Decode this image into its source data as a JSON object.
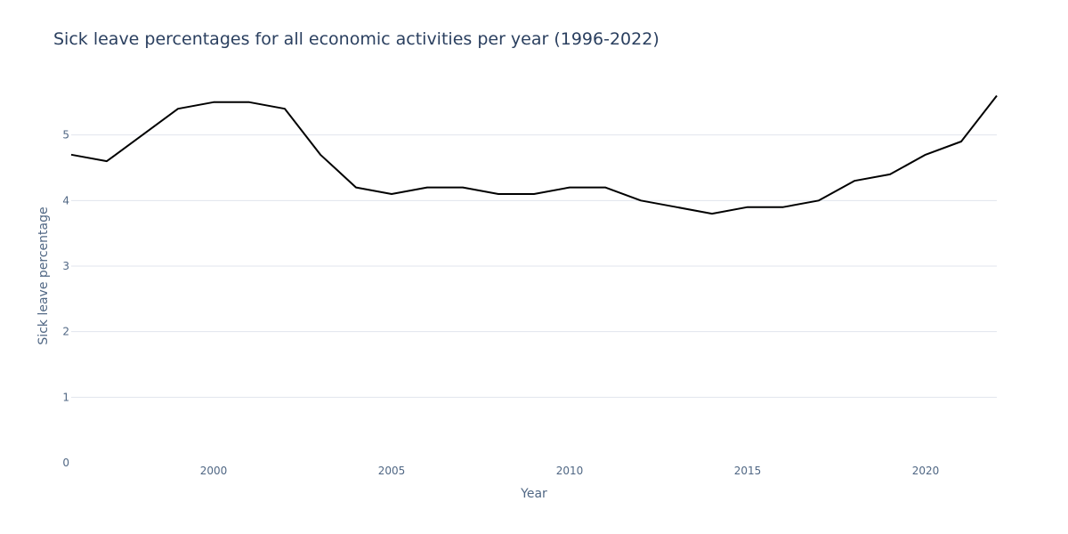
{
  "chart_data": {
    "type": "line",
    "title": "Sick leave percentages for all economic activities per year (1996-2022)",
    "xlabel": "Year",
    "ylabel": "Sick leave percentage",
    "x": [
      1996,
      1997,
      1998,
      1999,
      2000,
      2001,
      2002,
      2003,
      2004,
      2005,
      2006,
      2007,
      2008,
      2009,
      2010,
      2011,
      2012,
      2013,
      2014,
      2015,
      2016,
      2017,
      2018,
      2019,
      2020,
      2021,
      2022
    ],
    "series": [
      {
        "values": [
          4.7,
          4.6,
          5.0,
          5.4,
          5.5,
          5.5,
          5.4,
          4.7,
          4.2,
          4.1,
          4.2,
          4.2,
          4.1,
          4.1,
          4.2,
          4.2,
          4.0,
          3.9,
          3.8,
          3.9,
          3.9,
          4.0,
          4.3,
          4.4,
          4.7,
          4.9,
          5.6
        ],
        "color": "#000000"
      }
    ],
    "xlim": [
      1996,
      2022
    ],
    "ylim": [
      0,
      6
    ],
    "x_ticks": [
      "2000",
      "2005",
      "2010",
      "2015",
      "2020"
    ],
    "y_ticks": [
      "0",
      "1",
      "2",
      "3",
      "4",
      "5"
    ],
    "grid": "horizontal",
    "legend": "none"
  }
}
